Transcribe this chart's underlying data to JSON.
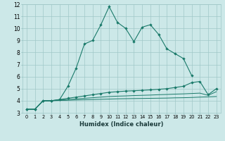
{
  "xlabel": "Humidex (Indice chaleur)",
  "x": [
    0,
    1,
    2,
    3,
    4,
    5,
    6,
    7,
    8,
    9,
    10,
    11,
    12,
    13,
    14,
    15,
    16,
    17,
    18,
    19,
    20,
    21,
    22,
    23
  ],
  "line1": [
    3.3,
    3.3,
    4.0,
    4.0,
    4.1,
    5.2,
    6.7,
    8.7,
    9.0,
    10.3,
    11.8,
    10.5,
    10.0,
    8.9,
    10.1,
    10.3,
    9.5,
    8.3,
    7.9,
    7.5,
    6.1,
    null,
    null,
    null
  ],
  "line2": [
    3.3,
    3.3,
    4.0,
    4.0,
    4.1,
    4.2,
    4.3,
    4.4,
    4.5,
    4.6,
    4.7,
    4.75,
    4.8,
    4.83,
    4.86,
    4.9,
    4.95,
    5.0,
    5.1,
    5.2,
    5.5,
    5.6,
    4.5,
    5.0
  ],
  "line3": [
    3.3,
    3.3,
    4.0,
    4.0,
    4.05,
    4.1,
    4.15,
    4.2,
    4.25,
    4.3,
    4.35,
    4.38,
    4.4,
    4.43,
    4.45,
    4.47,
    4.5,
    4.52,
    4.55,
    4.57,
    4.6,
    4.63,
    4.45,
    4.75
  ],
  "line4": [
    3.3,
    3.3,
    4.0,
    4.0,
    4.02,
    4.04,
    4.06,
    4.08,
    4.1,
    4.12,
    4.14,
    4.16,
    4.17,
    4.18,
    4.19,
    4.2,
    4.21,
    4.22,
    4.24,
    4.25,
    4.27,
    4.3,
    4.32,
    4.35
  ],
  "color": "#1a7a6a",
  "bg_color": "#cce8e8",
  "grid_color": "#a0c8c8",
  "ylim": [
    3,
    12
  ],
  "yticks": [
    3,
    4,
    5,
    6,
    7,
    8,
    9,
    10,
    11,
    12
  ],
  "xlim": [
    -0.5,
    23.5
  ],
  "xticks": [
    0,
    1,
    2,
    3,
    4,
    5,
    6,
    7,
    8,
    9,
    10,
    11,
    12,
    13,
    14,
    15,
    16,
    17,
    18,
    19,
    20,
    21,
    22,
    23
  ]
}
